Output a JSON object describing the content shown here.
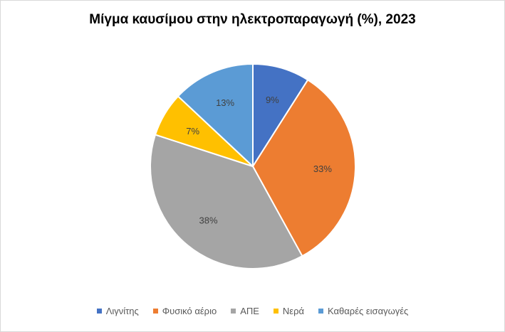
{
  "chart_data": {
    "type": "pie",
    "title": "Μίγμα καυσίμου στην ηλεκτροπαραγωγή (%), 2023",
    "legend_position": "bottom",
    "slices": [
      {
        "name": "Λιγνίτης",
        "value": 9,
        "label": "9%",
        "color": "#4472C4"
      },
      {
        "name": "Φυσικό αέριο",
        "value": 33,
        "label": "33%",
        "color": "#ED7D31"
      },
      {
        "name": "ΑΠΕ",
        "value": 38,
        "label": "38%",
        "color": "#A5A5A5"
      },
      {
        "name": "Νερά",
        "value": 7,
        "label": "7%",
        "color": "#FFC000"
      },
      {
        "name": "Καθαρές εισαγωγές",
        "value": 13,
        "label": "13%",
        "color": "#5B9BD5"
      }
    ]
  }
}
